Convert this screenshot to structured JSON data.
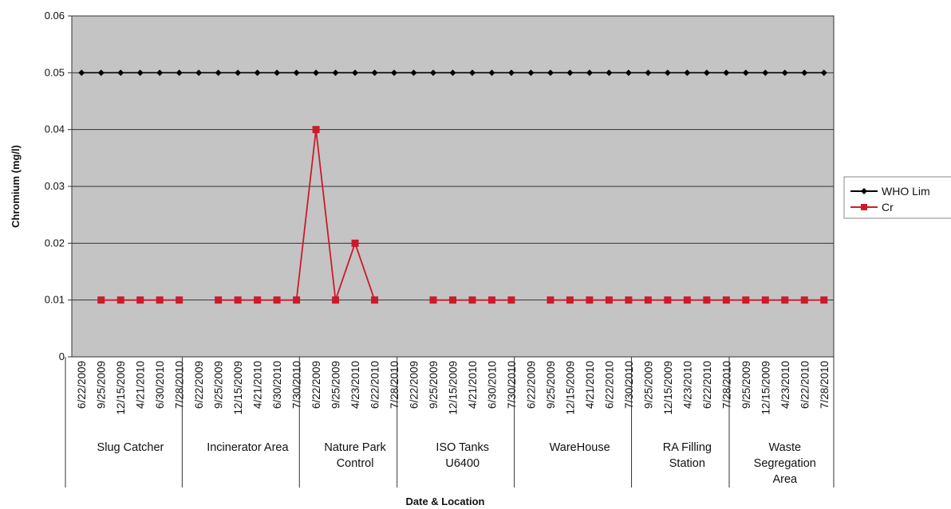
{
  "chart_data": {
    "type": "line",
    "title": "",
    "xlabel": "Date & Location",
    "ylabel": "Chromium (mg/l)",
    "ylim": [
      0,
      0.06
    ],
    "yticks": [
      "0",
      "0.01",
      "0.02",
      "0.03",
      "0.04",
      "0.05",
      "0.06"
    ],
    "grid": true,
    "legend_position": "right",
    "groups": [
      {
        "name": [
          "Slug Catcher"
        ],
        "dates": [
          "6/22/2009",
          "9/25/2009",
          "12/15/2009",
          "4/21/2010",
          "6/30/2010",
          "7/28/2010"
        ]
      },
      {
        "name": [
          "Incinerator Area"
        ],
        "dates": [
          "6/22/2009",
          "9/25/2009",
          "12/15/2009",
          "4/21/2010",
          "6/30/2010",
          "7/30/2010"
        ]
      },
      {
        "name": [
          "Nature Park",
          "Control"
        ],
        "dates": [
          "6/22/2009",
          "9/25/2009",
          "4/23/2010",
          "6/22/2010",
          "7/28/2010"
        ]
      },
      {
        "name": [
          "ISO Tanks",
          "U6400"
        ],
        "dates": [
          "6/22/2009",
          "9/25/2009",
          "12/15/2009",
          "4/21/2010",
          "6/30/2010",
          "7/30/2010"
        ]
      },
      {
        "name": [
          "WareHouse"
        ],
        "dates": [
          "6/22/2009",
          "9/25/2009",
          "12/15/2009",
          "4/21/2010",
          "6/22/2010",
          "7/30/2010"
        ]
      },
      {
        "name": [
          "RA Filling",
          "Station"
        ],
        "dates": [
          "9/25/2009",
          "12/15/2009",
          "4/23/2010",
          "6/22/2010",
          "7/28/2010"
        ]
      },
      {
        "name": [
          "Waste",
          "Segregation",
          "Area"
        ],
        "dates": [
          "9/25/2009",
          "12/15/2009",
          "4/23/2010",
          "6/22/2010",
          "7/28/2010"
        ]
      }
    ],
    "series": [
      {
        "name": "WHO  Lim",
        "color": "#000000",
        "marker": "diamond",
        "values": [
          0.05,
          0.05,
          0.05,
          0.05,
          0.05,
          0.05,
          0.05,
          0.05,
          0.05,
          0.05,
          0.05,
          0.05,
          0.05,
          0.05,
          0.05,
          0.05,
          0.05,
          0.05,
          0.05,
          0.05,
          0.05,
          0.05,
          0.05,
          0.05,
          0.05,
          0.05,
          0.05,
          0.05,
          0.05,
          0.05,
          0.05,
          0.05,
          0.05,
          0.05,
          0.05,
          0.05,
          0.05,
          0.05,
          0.05
        ]
      },
      {
        "name": "Cr",
        "color": "#cc1a2a",
        "marker": "square",
        "values": [
          null,
          0.01,
          0.01,
          0.01,
          0.01,
          0.01,
          null,
          0.01,
          0.01,
          0.01,
          0.01,
          0.01,
          0.04,
          0.01,
          0.02,
          0.01,
          null,
          null,
          0.01,
          0.01,
          0.01,
          0.01,
          0.01,
          null,
          0.01,
          0.01,
          0.01,
          0.01,
          0.01,
          0.01,
          0.01,
          0.01,
          0.01,
          0.01,
          0.01,
          0.01,
          0.01,
          0.01,
          0.01
        ]
      }
    ]
  }
}
